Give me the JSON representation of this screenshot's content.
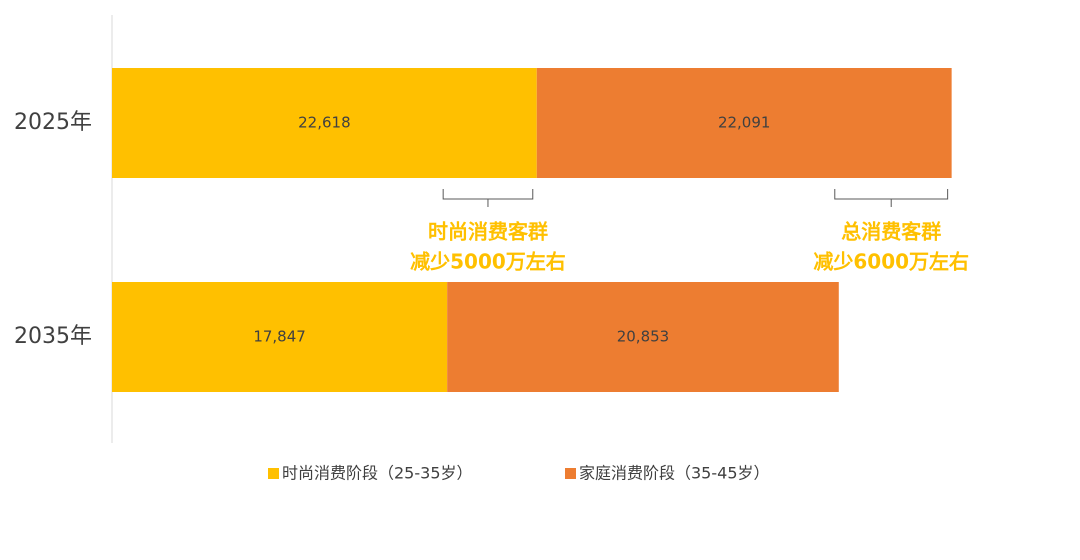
{
  "chart_data": {
    "type": "stacked_barh",
    "categories": [
      "2025年",
      "2035年"
    ],
    "series": [
      {
        "name": "时尚消费阶段（25-35岁）",
        "color": "#FFC000",
        "values": [
          22618,
          17847
        ],
        "value_labels": [
          "22,618",
          "17,847"
        ]
      },
      {
        "name": "家庭消费阶段（35-45岁）",
        "color": "#ED7D31",
        "values": [
          22091,
          20853
        ],
        "value_labels": [
          "22,091",
          "20,853"
        ]
      }
    ],
    "xlim": [
      0,
      50000
    ],
    "annotations": [
      {
        "lines": [
          "时尚消费客群",
          "减少5000万左右"
        ]
      },
      {
        "lines": [
          "总消费客群",
          "减少6000万左右"
        ]
      }
    ],
    "legend": "bottom"
  }
}
